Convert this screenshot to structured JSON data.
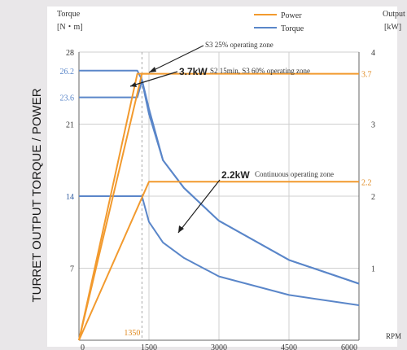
{
  "chart_data": {
    "type": "line",
    "ylabel": "TURRET OUTPUT TORQUE / POWER",
    "left_axis": {
      "title": "Torque",
      "unit": "[N・m]",
      "range": [
        0,
        28
      ],
      "ticks": [
        "7",
        "14",
        "21",
        "28"
      ],
      "highlight_ticks": [
        "26.2",
        "23.6",
        "14"
      ]
    },
    "right_axis": {
      "title": "Output",
      "unit": "[kW]",
      "range": [
        0,
        4
      ],
      "ticks": [
        "1",
        "2",
        "3",
        "4"
      ],
      "highlight_ticks": [
        "3.7",
        "2.2"
      ]
    },
    "x_axis": {
      "unit": "RPM",
      "range": [
        0,
        6000
      ],
      "ticks": [
        "0",
        "1500",
        "3000",
        "4500",
        "6000"
      ],
      "highlight_tick": "1350"
    },
    "legend": [
      {
        "name": "Power",
        "color": "#f29a2e"
      },
      {
        "name": "Torque",
        "color": "#5a86c9"
      }
    ],
    "annotations": [
      {
        "text": "S3 25% operating zone"
      },
      {
        "value": "3.7kW",
        "text": "S2 15min, S3 60% operating zone"
      },
      {
        "value": "2.2kW",
        "text": "Continuous operating zone"
      }
    ],
    "series": [
      {
        "color": "#5a86c9",
        "axis": "left",
        "x": [
          0,
          1250,
          1350,
          1500,
          1800,
          2250,
          3000,
          4500,
          6000
        ],
        "y": [
          26.2,
          26.2,
          25.3,
          22.5,
          17.5,
          14.8,
          11.6,
          7.8,
          5.5
        ]
      },
      {
        "color": "#5a86c9",
        "axis": "left",
        "x": [
          0,
          1250,
          1350,
          1500,
          1800,
          2250,
          3000,
          4500,
          6000
        ],
        "y": [
          23.6,
          23.6,
          25.2,
          22.0,
          17.5,
          14.8,
          11.6,
          7.8,
          5.5
        ]
      },
      {
        "color": "#5a86c9",
        "axis": "left",
        "x": [
          0,
          1350,
          1500,
          1800,
          2250,
          3000,
          4500,
          6000
        ],
        "y": [
          14,
          14,
          11.5,
          9.5,
          8.0,
          6.2,
          4.4,
          3.4
        ]
      },
      {
        "color": "#f29a2e",
        "axis": "right",
        "x": [
          0,
          1250,
          6000
        ],
        "y": [
          0,
          3.7,
          3.7
        ]
      },
      {
        "color": "#f29a2e",
        "axis": "right",
        "x": [
          0,
          1350,
          1500
        ],
        "y": [
          0,
          3.7,
          3.7
        ]
      },
      {
        "color": "#f29a2e",
        "axis": "right",
        "x": [
          0,
          1500,
          6000
        ],
        "y": [
          0,
          2.2,
          2.2
        ]
      }
    ]
  }
}
